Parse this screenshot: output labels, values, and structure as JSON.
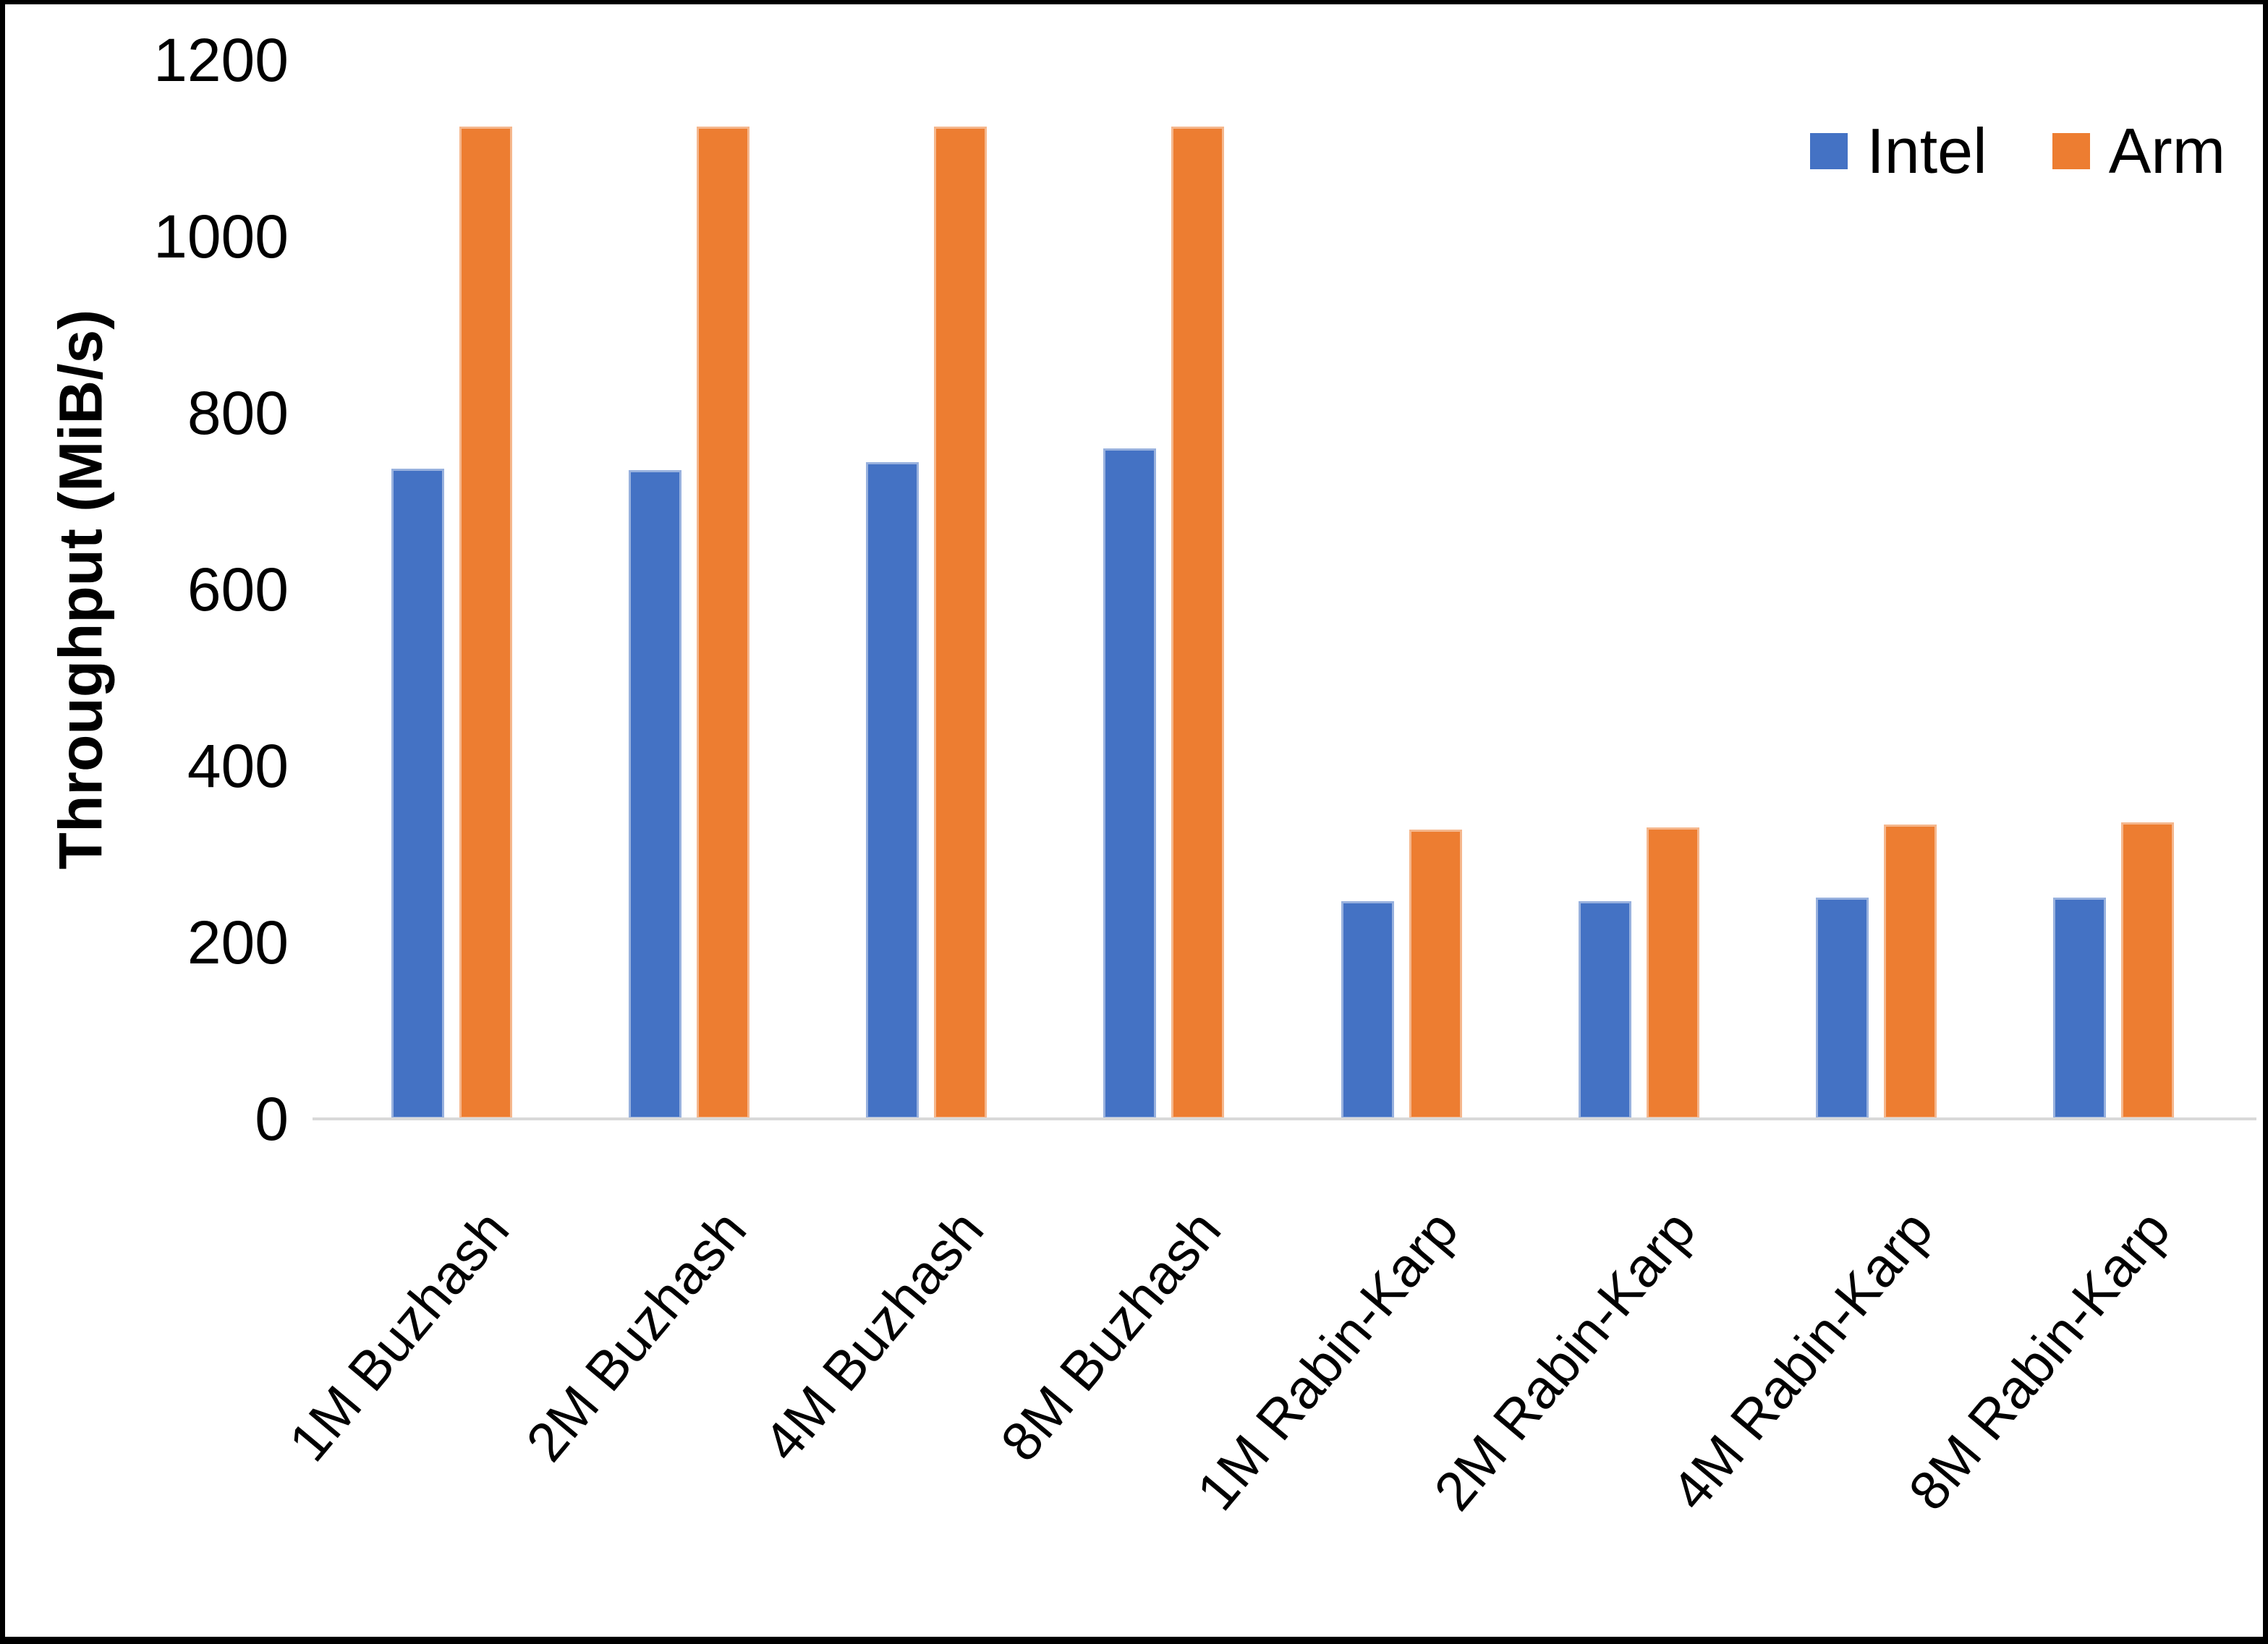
{
  "chart_data": {
    "type": "bar",
    "title": "",
    "xlabel": "",
    "ylabel": "Throughput (MiB/s)",
    "ylim": [
      0,
      1200
    ],
    "yticks": [
      0,
      200,
      400,
      600,
      800,
      1000,
      1200
    ],
    "grid": false,
    "legend_position": "top-right",
    "axis_line_color": "#d9d9d9",
    "categories": [
      "1M Buzhash",
      "2M Buzhash",
      "4M Buzhash",
      "8M Buzhash",
      "1M Rabin-Karp",
      "2M Rabin-Karp",
      "4M Rabin-Karp",
      "8M Rabin-Karp"
    ],
    "series": [
      {
        "name": "Intel",
        "color": "#4472C4",
        "values": [
          737,
          735,
          744,
          760,
          247,
          247,
          251,
          251
        ]
      },
      {
        "name": "Arm",
        "color": "#ED7D31",
        "values": [
          1125,
          1125,
          1125,
          1125,
          328,
          330,
          334,
          336
        ]
      }
    ]
  }
}
